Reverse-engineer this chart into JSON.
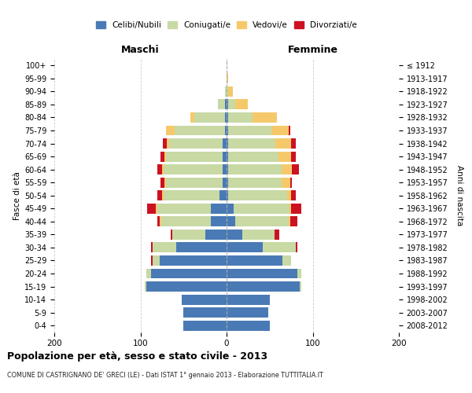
{
  "age_groups": [
    "0-4",
    "5-9",
    "10-14",
    "15-19",
    "20-24",
    "25-29",
    "30-34",
    "35-39",
    "40-44",
    "45-49",
    "50-54",
    "55-59",
    "60-64",
    "65-69",
    "70-74",
    "75-79",
    "80-84",
    "85-89",
    "90-94",
    "95-99",
    "100+"
  ],
  "birth_years": [
    "2008-2012",
    "2003-2007",
    "1998-2002",
    "1993-1997",
    "1988-1992",
    "1983-1987",
    "1978-1982",
    "1973-1977",
    "1968-1972",
    "1963-1967",
    "1958-1962",
    "1953-1957",
    "1948-1952",
    "1943-1947",
    "1938-1942",
    "1933-1937",
    "1928-1932",
    "1923-1927",
    "1918-1922",
    "1913-1917",
    "≤ 1912"
  ],
  "maschi_celibi": [
    50,
    50,
    52,
    93,
    88,
    78,
    58,
    25,
    18,
    18,
    8,
    5,
    5,
    5,
    5,
    2,
    2,
    2,
    0,
    0,
    0
  ],
  "maschi_coniugati": [
    0,
    0,
    0,
    2,
    5,
    8,
    28,
    38,
    58,
    62,
    65,
    65,
    68,
    65,
    62,
    58,
    35,
    8,
    2,
    0,
    0
  ],
  "maschi_vedovi": [
    0,
    0,
    0,
    0,
    0,
    0,
    0,
    0,
    2,
    2,
    2,
    2,
    2,
    2,
    2,
    10,
    5,
    0,
    0,
    0,
    0
  ],
  "maschi_divorziati": [
    0,
    0,
    0,
    0,
    0,
    2,
    2,
    2,
    2,
    10,
    5,
    5,
    5,
    5,
    5,
    0,
    0,
    0,
    0,
    0,
    0
  ],
  "femmine_nubili": [
    50,
    48,
    50,
    85,
    82,
    65,
    42,
    18,
    10,
    8,
    2,
    2,
    2,
    2,
    2,
    2,
    2,
    2,
    0,
    0,
    0
  ],
  "femmine_coniugate": [
    0,
    0,
    0,
    2,
    5,
    10,
    38,
    38,
    62,
    65,
    68,
    62,
    62,
    58,
    55,
    50,
    28,
    8,
    2,
    0,
    0
  ],
  "femmine_vedove": [
    0,
    0,
    0,
    0,
    0,
    0,
    0,
    0,
    2,
    2,
    5,
    10,
    12,
    15,
    18,
    20,
    28,
    15,
    5,
    2,
    0
  ],
  "femmine_divorziate": [
    0,
    0,
    0,
    0,
    0,
    0,
    2,
    5,
    8,
    12,
    5,
    2,
    8,
    5,
    5,
    2,
    0,
    0,
    0,
    0,
    0
  ],
  "color_celibi": "#4a7ab5",
  "color_coniugati": "#c8d9a4",
  "color_vedovi": "#f5c96a",
  "color_divorziati": "#cc1122",
  "xlim": 200,
  "title": "Popolazione per età, sesso e stato civile - 2013",
  "subtitle": "COMUNE DI CASTRIGNANO DE' GRECI (LE) - Dati ISTAT 1° gennaio 2013 - Elaborazione TUTTITALIA.IT",
  "legend_labels": [
    "Celibi/Nubili",
    "Coniugati/e",
    "Vedovi/e",
    "Divorziati/e"
  ],
  "label_maschi": "Maschi",
  "label_femmine": "Femmine",
  "label_fasce": "Fasce di età",
  "label_anni": "Anni di nascita"
}
